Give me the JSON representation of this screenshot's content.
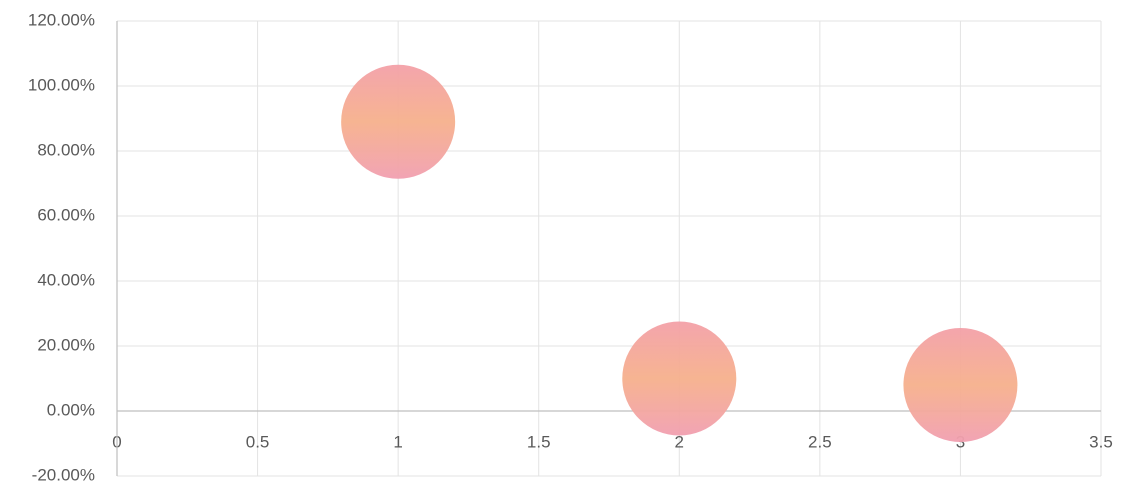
{
  "chart_data": {
    "type": "scatter",
    "x": [
      1,
      2,
      3
    ],
    "values": [
      89,
      10,
      8
    ],
    "color": "#f6b08c",
    "xlim": [
      0,
      3.5
    ],
    "xticks": [
      0,
      0.5,
      1,
      1.5,
      2,
      2.5,
      3,
      3.5
    ],
    "ylim": [
      -20,
      120
    ],
    "yticks": [
      {
        "value": -20,
        "label": "-20.00%"
      },
      {
        "value": 0,
        "label": "0.00%"
      },
      {
        "value": 20,
        "label": "20.00%"
      },
      {
        "value": 40,
        "label": "40.00%"
      },
      {
        "value": 60,
        "label": "60.00%"
      },
      {
        "value": 80,
        "label": "80.00%"
      },
      {
        "value": 100,
        "label": "100.00%"
      },
      {
        "value": 120,
        "label": "120.00%"
      }
    ],
    "grid": true
  }
}
